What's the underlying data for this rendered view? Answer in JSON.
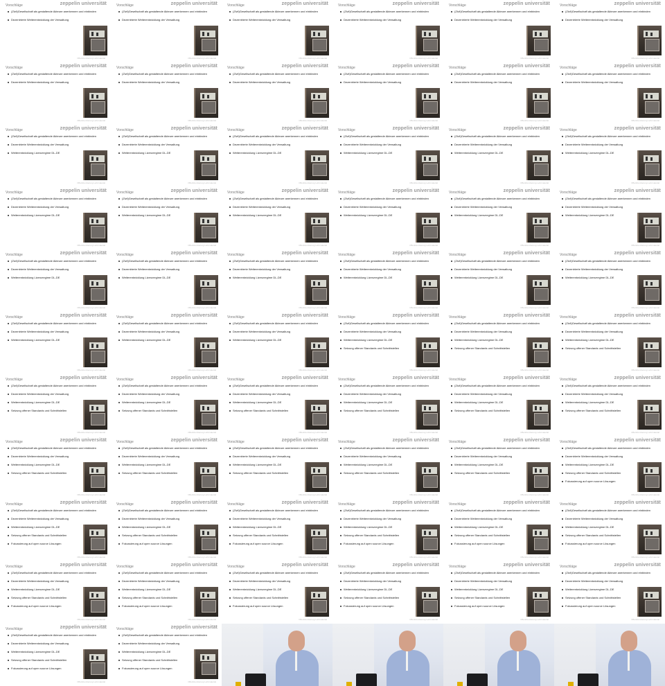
{
  "slide": {
    "title": "Vorschläge",
    "logo": "zeppelin universität",
    "footer": "Offenlizenzierung Lehrmaterial",
    "bullets": [
      "(Zivil)Gesellschaft als gestaltende Akteure anerkennen und einbinden",
      "Dezentrierte Weiterentwicklung der Verwaltung",
      "Weiterentwicklung Lizenzregime DL-DE",
      "Setzung offener Standards und Schnittstellen",
      "Fokussierung auf open source Lösungen"
    ]
  },
  "frames": [
    {
      "type": "slide",
      "bullets": 2
    },
    {
      "type": "slide",
      "bullets": 2
    },
    {
      "type": "slide",
      "bullets": 2
    },
    {
      "type": "slide",
      "bullets": 2
    },
    {
      "type": "slide",
      "bullets": 2
    },
    {
      "type": "slide",
      "bullets": 2
    },
    {
      "type": "slide",
      "bullets": 2
    },
    {
      "type": "slide",
      "bullets": 2
    },
    {
      "type": "slide",
      "bullets": 2
    },
    {
      "type": "slide",
      "bullets": 2
    },
    {
      "type": "slide",
      "bullets": 2
    },
    {
      "type": "slide",
      "bullets": 2
    },
    {
      "type": "slide",
      "bullets": 3
    },
    {
      "type": "slide",
      "bullets": 3
    },
    {
      "type": "slide",
      "bullets": 3
    },
    {
      "type": "slide",
      "bullets": 3
    },
    {
      "type": "slide",
      "bullets": 3
    },
    {
      "type": "slide",
      "bullets": 3
    },
    {
      "type": "slide",
      "bullets": 3
    },
    {
      "type": "slide",
      "bullets": 3
    },
    {
      "type": "slide",
      "bullets": 3
    },
    {
      "type": "slide",
      "bullets": 3
    },
    {
      "type": "slide",
      "bullets": 3
    },
    {
      "type": "slide",
      "bullets": 3
    },
    {
      "type": "slide",
      "bullets": 3
    },
    {
      "type": "slide",
      "bullets": 3
    },
    {
      "type": "slide",
      "bullets": 3
    },
    {
      "type": "slide",
      "bullets": 3
    },
    {
      "type": "slide",
      "bullets": 3
    },
    {
      "type": "slide",
      "bullets": 3
    },
    {
      "type": "slide",
      "bullets": 3
    },
    {
      "type": "slide",
      "bullets": 3
    },
    {
      "type": "slide",
      "bullets": 3
    },
    {
      "type": "slide",
      "bullets": 4
    },
    {
      "type": "slide",
      "bullets": 4
    },
    {
      "type": "slide",
      "bullets": 4
    },
    {
      "type": "slide",
      "bullets": 4
    },
    {
      "type": "slide",
      "bullets": 4
    },
    {
      "type": "slide",
      "bullets": 4
    },
    {
      "type": "slide",
      "bullets": 4
    },
    {
      "type": "slide",
      "bullets": 4
    },
    {
      "type": "slide",
      "bullets": 4
    },
    {
      "type": "slide",
      "bullets": 4
    },
    {
      "type": "slide",
      "bullets": 4
    },
    {
      "type": "slide",
      "bullets": 4
    },
    {
      "type": "slide",
      "bullets": 4
    },
    {
      "type": "slide",
      "bullets": 4
    },
    {
      "type": "slide",
      "bullets": 5
    },
    {
      "type": "slide",
      "bullets": 5
    },
    {
      "type": "slide",
      "bullets": 5
    },
    {
      "type": "slide",
      "bullets": 5
    },
    {
      "type": "slide",
      "bullets": 5
    },
    {
      "type": "slide",
      "bullets": 5
    },
    {
      "type": "slide",
      "bullets": 5
    },
    {
      "type": "slide",
      "bullets": 5
    },
    {
      "type": "slide",
      "bullets": 5
    },
    {
      "type": "slide",
      "bullets": 5
    },
    {
      "type": "slide",
      "bullets": 5
    },
    {
      "type": "slide",
      "bullets": 5
    },
    {
      "type": "slide",
      "bullets": 5
    },
    {
      "type": "slide",
      "bullets": 5
    },
    {
      "type": "slide",
      "bullets": 5
    },
    {
      "type": "video"
    },
    {
      "type": "video"
    },
    {
      "type": "video"
    },
    {
      "type": "video"
    }
  ]
}
